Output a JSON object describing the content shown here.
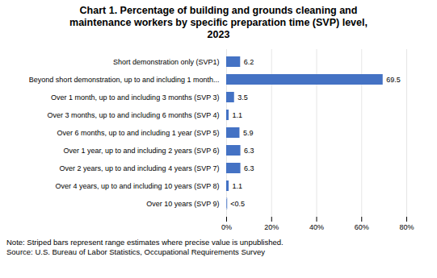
{
  "chart_data": {
    "type": "bar",
    "orientation": "horizontal",
    "title": "Chart 1. Percentage of building and grounds cleaning and\nmaintenance workers by specific preparation time (SVP) level,\n2023",
    "categories": [
      "Short demonstration only (SVP1)",
      "Beyond short demonstration, up to and including 1 month...",
      "Over 1 month, up to and including 3 months (SVP 3)",
      "Over 3 months, up to and including 6 months (SVP 4)",
      "Over 6 months, up to and including 1 year (SVP 5)",
      "Over 1 year, up to and including 2 years (SVP 6)",
      "Over 2 years, up to and including 4 years (SVP 7)",
      "Over 4 years, up to and including 10 years (SVP 8)",
      "Over 10 years (SVP 9)"
    ],
    "values": [
      6.2,
      69.5,
      3.5,
      1.1,
      5.9,
      6.3,
      6.3,
      1.1,
      0.3
    ],
    "value_labels": [
      "6.2",
      "69.5",
      "3.5",
      "1.1",
      "5.9",
      "6.3",
      "6.3",
      "1.1",
      "<0.5"
    ],
    "striped": [
      false,
      false,
      false,
      false,
      false,
      false,
      false,
      false,
      true
    ],
    "data_labels": true,
    "color": "#4472C4",
    "xlim": [
      0,
      80
    ],
    "xticks": [
      {
        "value": 0,
        "label": "0%"
      },
      {
        "value": 20,
        "label": "20%"
      },
      {
        "value": 40,
        "label": "40%"
      },
      {
        "value": 60,
        "label": "60%"
      },
      {
        "value": 80,
        "label": "80%"
      }
    ],
    "grid": true,
    "note": "Note: Striped bars represent range estimates where precise value is unpublished.\nSource: U.S. Bureau of Labor Statistics, Occupational Requirements Survey"
  }
}
